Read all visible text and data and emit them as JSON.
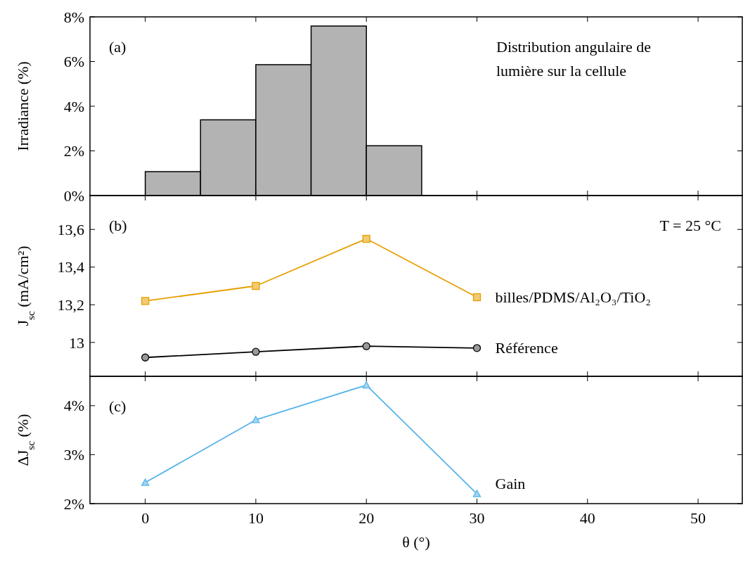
{
  "chart_data": [
    {
      "type": "histogram",
      "annotations": [
        "(a)",
        "Distribution angulaire de lumière sur la cellule"
      ],
      "ylabel": "Irradiance (%)",
      "bins": [
        0,
        5,
        10,
        15,
        20,
        25
      ],
      "values": [
        1.07,
        3.39,
        5.86,
        7.59,
        2.23
      ],
      "color": "#b3b3b3",
      "xlim": [
        -5,
        54
      ],
      "xticks": [
        0,
        10,
        20,
        30,
        40,
        50
      ],
      "ylim": [
        0,
        8
      ],
      "yticks": [
        {
          "value": 0,
          "label": "0%"
        },
        {
          "value": 2,
          "label": "2%"
        },
        {
          "value": 4,
          "label": "4%"
        },
        {
          "value": 6,
          "label": "6%"
        },
        {
          "value": 8,
          "label": "8%"
        }
      ],
      "tick_labels": "y"
    },
    {
      "type": "line",
      "annotations": [
        "(b)",
        "T = 25 °C"
      ],
      "ylabel": "J$_{sc}$ (mA/cm²)",
      "xlim": [
        -5,
        54
      ],
      "xticks": [
        0,
        10,
        20,
        30,
        40,
        50
      ],
      "ylim": [
        12.82,
        13.78
      ],
      "yticks": [
        {
          "value": 13,
          "label": "13"
        },
        {
          "value": 13.2,
          "label": "13,2"
        },
        {
          "value": 13.4,
          "label": "13,4"
        },
        {
          "value": 13.6,
          "label": "13,6"
        }
      ],
      "tick_labels": "y",
      "series": [
        {
          "name": "billes/PDMS/Al₂O₃/TiO₂",
          "color": "#e69f00",
          "marker": "square",
          "x": [
            0,
            10,
            20,
            30
          ],
          "values": [
            13.22,
            13.3,
            13.55,
            13.24
          ]
        },
        {
          "name": "Référence",
          "color": "#000000",
          "marker": "circle",
          "x": [
            0,
            10,
            20,
            30
          ],
          "values": [
            12.92,
            12.95,
            12.98,
            12.97
          ]
        }
      ]
    },
    {
      "type": "line",
      "annotations": [
        "(c)"
      ],
      "ylabel": "ΔJ$_{sc}$ (%)",
      "xlabel": "θ (°)",
      "xlim": [
        -5,
        54
      ],
      "xticks": [
        0,
        10,
        20,
        30,
        40,
        50
      ],
      "ylim": [
        2,
        4.6
      ],
      "yticks": [
        {
          "value": 2,
          "label": "2%"
        },
        {
          "value": 3,
          "label": "3%"
        },
        {
          "value": 4,
          "label": "4%"
        }
      ],
      "series": [
        {
          "name": "Gain",
          "color": "#56b4e9",
          "marker": "triangle",
          "x": [
            0,
            10,
            20,
            30
          ],
          "values": [
            2.43,
            3.71,
            4.42,
            2.2
          ]
        }
      ]
    }
  ]
}
